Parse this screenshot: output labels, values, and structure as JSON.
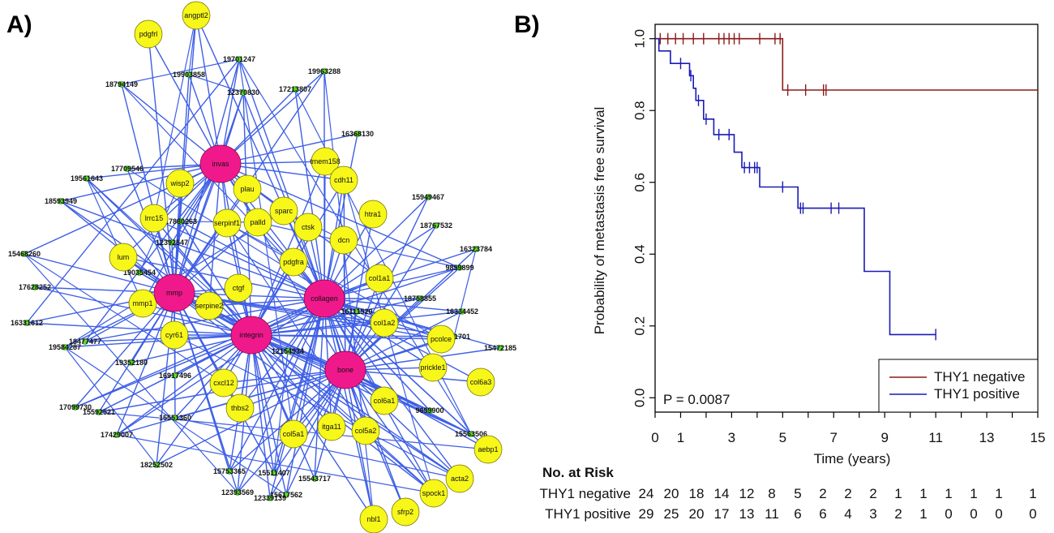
{
  "panels": {
    "a_label": "A)",
    "b_label": "B)"
  },
  "network": {
    "edge_color": "#3e5fe6",
    "hub_color": "#f0198c",
    "node_color": "#f7f71a",
    "small_color": "#5ce22a",
    "hubs": [
      "invas",
      "mmp",
      "collagen",
      "integrin",
      "bone"
    ],
    "genes": [
      "angptl2",
      "pdgfrl",
      "tmem158",
      "cdh11",
      "wisp2",
      "plau",
      "sparc",
      "ctsk",
      "htra1",
      "lrrc15",
      "serpinf1",
      "palld",
      "dcn",
      "lum",
      "pdgfra",
      "ctgf",
      "col1a1",
      "mmp1",
      "serpine2",
      "col1a2",
      "cyr61",
      "pcolce",
      "prickle1",
      "col6a3",
      "cxcl12",
      "thbs2",
      "col6a1",
      "col5a1",
      "itga11",
      "col5a2",
      "aebp1",
      "acta2",
      "spock1",
      "sfrp2",
      "nbl1"
    ],
    "pmids": [
      "19701247",
      "19903858",
      "19963288",
      "18794149",
      "12370830",
      "17213807",
      "16368130",
      "17709546",
      "19561643",
      "18593949",
      "15949467",
      "18767532",
      "17880263",
      "12392547",
      "16323784",
      "15468260",
      "19035454",
      "9859899",
      "17628252",
      "16111520",
      "18758855",
      "16334452",
      "16331612",
      "18477477",
      "18281701",
      "15472185",
      "19584287",
      "19352180",
      "16917496",
      "12154934",
      "17099730",
      "15592521",
      "15551360",
      "9659900",
      "15563506",
      "17429007",
      "18252502",
      "15753365",
      "15511407",
      "15543717",
      "12393569",
      "15617562",
      "12339139"
    ]
  },
  "chart_data": {
    "type": "line",
    "title": "",
    "xlabel": "Time (years)",
    "ylabel": "Probability of metastasis free survival",
    "xlim": [
      0,
      15
    ],
    "ylim": [
      0.0,
      1.0
    ],
    "x_ticks": [
      "0",
      "1",
      "3",
      "5",
      "7",
      "9",
      "11",
      "13",
      "15"
    ],
    "x_tick_values": [
      0,
      1,
      3,
      5,
      7,
      9,
      11,
      13,
      15
    ],
    "y_ticks": [
      "0.0",
      "0.2",
      "0.4",
      "0.6",
      "0.8",
      "1.0"
    ],
    "y_tick_values": [
      0.0,
      0.2,
      0.4,
      0.6,
      0.8,
      1.0
    ],
    "legend_position": "bottom-right",
    "p_value": "P = 0.0087",
    "series": [
      {
        "name": "THY1 negative",
        "color": "#8b1a1a",
        "steps": [
          [
            0,
            1.0
          ],
          [
            5.0,
            1.0
          ],
          [
            5.0,
            0.857
          ],
          [
            15,
            0.857
          ]
        ],
        "censor": [
          0.2,
          0.5,
          0.8,
          1.1,
          1.5,
          1.9,
          2.5,
          2.7,
          2.9,
          3.1,
          3.3,
          4.1,
          4.7,
          4.9,
          5.2,
          5.9,
          6.6,
          6.7
        ]
      },
      {
        "name": "THY1 positive",
        "color": "#1a1ab8",
        "steps": [
          [
            0,
            1.0
          ],
          [
            0.15,
            1.0
          ],
          [
            0.15,
            0.966
          ],
          [
            0.6,
            0.966
          ],
          [
            0.6,
            0.931
          ],
          [
            1.35,
            0.931
          ],
          [
            1.35,
            0.897
          ],
          [
            1.5,
            0.897
          ],
          [
            1.5,
            0.862
          ],
          [
            1.6,
            0.862
          ],
          [
            1.6,
            0.828
          ],
          [
            1.9,
            0.828
          ],
          [
            1.9,
            0.776
          ],
          [
            2.3,
            0.776
          ],
          [
            2.3,
            0.733
          ],
          [
            3.1,
            0.733
          ],
          [
            3.1,
            0.684
          ],
          [
            3.4,
            0.684
          ],
          [
            3.4,
            0.641
          ],
          [
            4.1,
            0.641
          ],
          [
            4.1,
            0.587
          ],
          [
            5.6,
            0.587
          ],
          [
            5.6,
            0.528
          ],
          [
            8.2,
            0.528
          ],
          [
            8.2,
            0.352
          ],
          [
            9.2,
            0.352
          ],
          [
            9.2,
            0.176
          ],
          [
            11,
            0.176
          ]
        ],
        "censor": [
          1.0,
          1.4,
          1.7,
          2.0,
          2.5,
          2.9,
          3.5,
          3.7,
          3.9,
          4.0,
          5.0,
          5.7,
          5.8,
          6.9,
          7.2,
          11.0
        ]
      }
    ]
  },
  "risk_table": {
    "title": "No. at Risk",
    "rows": [
      {
        "label": "THY1 negative",
        "values": [
          "24",
          "20",
          "18",
          "14",
          "12",
          "8",
          "5",
          "2",
          "2",
          "2",
          "1",
          "1",
          "1",
          "1",
          "1",
          "1"
        ]
      },
      {
        "label": "THY1 positive",
        "values": [
          "29",
          "25",
          "20",
          "17",
          "13",
          "11",
          "6",
          "6",
          "4",
          "3",
          "2",
          "1",
          "0",
          "0",
          "0",
          "0"
        ]
      }
    ]
  }
}
